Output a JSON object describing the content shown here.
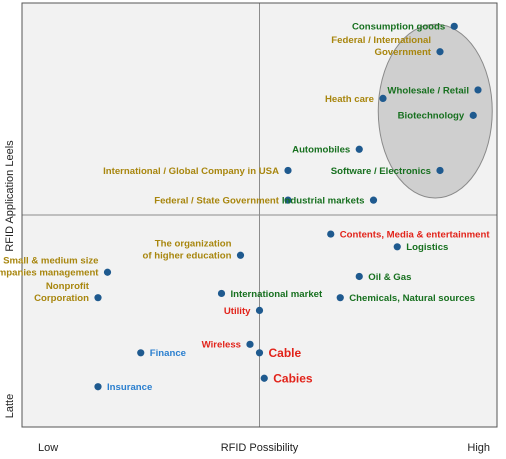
{
  "chart_data": {
    "type": "scatter",
    "title": "",
    "xlabel": "RFID Possibility",
    "ylabel": "RFID Application Leels",
    "x_tick_labels": {
      "low": "Low",
      "high": "High"
    },
    "y_tick_labels": {
      "low": "Latte"
    },
    "xlim": [
      0,
      100
    ],
    "ylim": [
      0,
      100
    ],
    "quadrant_dividers": {
      "x": 50,
      "y": 50
    },
    "grid": false,
    "colors": {
      "point": "#1f5a8f",
      "gold": "#a8860e",
      "green": "#17701f",
      "red": "#e2231a",
      "blue": "#2a7fcf",
      "plot_bg": "#f2f2f2",
      "ellipse": "#cfcfcf"
    },
    "highlight_ellipse": {
      "cx": 87,
      "cy": 74.5,
      "rx": 12,
      "ry": 20.5
    },
    "points": [
      {
        "label": "Consumption goods",
        "x": 91,
        "y": 94.5,
        "color": "green",
        "anchor": "end"
      },
      {
        "label": "Federal / International\nGovernment",
        "x": 88,
        "y": 88.5,
        "color": "gold",
        "anchor": "end"
      },
      {
        "label": "Wholesale / Retail",
        "x": 96,
        "y": 79.5,
        "color": "green",
        "anchor": "end"
      },
      {
        "label": "Heath care",
        "x": 76,
        "y": 77.5,
        "color": "gold",
        "anchor": "end"
      },
      {
        "label": "Biotechnology",
        "x": 95,
        "y": 73.5,
        "color": "green",
        "anchor": "end"
      },
      {
        "label": "Automobiles",
        "x": 71,
        "y": 65.5,
        "color": "green",
        "anchor": "end"
      },
      {
        "label": "Software / Electronics",
        "x": 88,
        "y": 60.5,
        "color": "green",
        "anchor": "end"
      },
      {
        "label": "International / Global Company in USA",
        "x": 56,
        "y": 60.5,
        "color": "gold",
        "anchor": "end"
      },
      {
        "label": "Federal / State Government",
        "x": 56,
        "y": 53.5,
        "color": "gold",
        "anchor": "end"
      },
      {
        "label": "Industrial markets",
        "x": 74,
        "y": 53.5,
        "color": "green",
        "anchor": "end"
      },
      {
        "label": "Contents, Media & entertainment",
        "x": 65,
        "y": 45.5,
        "color": "red",
        "anchor": "start"
      },
      {
        "label": "Logistics",
        "x": 79,
        "y": 42.5,
        "color": "green",
        "anchor": "start"
      },
      {
        "label": "Small & medium size\ncompanies management",
        "x": 18,
        "y": 36.5,
        "color": "gold",
        "anchor": "end"
      },
      {
        "label": "The organization\nof higher education",
        "x": 46,
        "y": 40.5,
        "color": "gold",
        "anchor": "end"
      },
      {
        "label": "Oil & Gas",
        "x": 71,
        "y": 35.5,
        "color": "green",
        "anchor": "start"
      },
      {
        "label": "International market",
        "x": 42,
        "y": 31.5,
        "color": "green",
        "anchor": "start"
      },
      {
        "label": "Nonprofit\nCorporation",
        "x": 16,
        "y": 30.5,
        "color": "gold",
        "anchor": "end"
      },
      {
        "label": "Chemicals, Natural sources",
        "x": 67,
        "y": 30.5,
        "color": "green",
        "anchor": "start"
      },
      {
        "label": "Utility",
        "x": 50,
        "y": 27.5,
        "color": "red",
        "anchor": "end"
      },
      {
        "label": "Wireless",
        "x": 48,
        "y": 19.5,
        "color": "red",
        "anchor": "end"
      },
      {
        "label": "Cable",
        "x": 50,
        "y": 17.5,
        "color": "red",
        "anchor": "start"
      },
      {
        "label": "Finance",
        "x": 25,
        "y": 17.5,
        "color": "blue",
        "anchor": "start"
      },
      {
        "label": "Cabies",
        "x": 51,
        "y": 11.5,
        "color": "red",
        "anchor": "start"
      },
      {
        "label": "Insurance",
        "x": 16,
        "y": 9.5,
        "color": "blue",
        "anchor": "start"
      }
    ]
  }
}
